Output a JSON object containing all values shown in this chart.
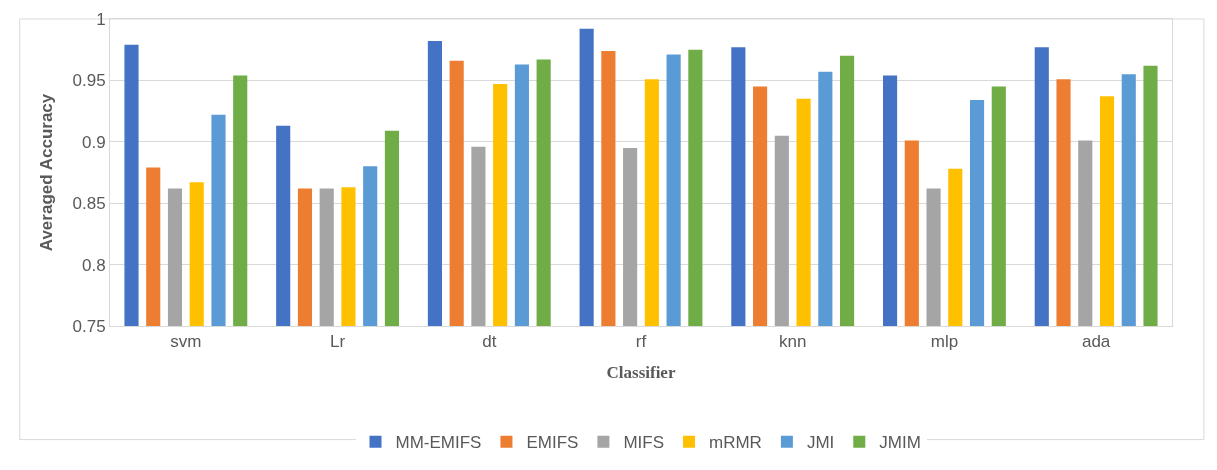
{
  "chart_data": {
    "type": "bar",
    "xlabel": "Classifier",
    "ylabel": "Averaged Accuracy",
    "categories": [
      "svm",
      "Lr",
      "dt",
      "rf",
      "knn",
      "mlp",
      "ada"
    ],
    "series": [
      {
        "name": "MM-EMIFS",
        "color": "#4472c4",
        "values": [
          0.979,
          0.913,
          0.982,
          0.992,
          0.977,
          0.954,
          0.977
        ]
      },
      {
        "name": "EMIFS",
        "color": "#ed7d31",
        "values": [
          0.879,
          0.862,
          0.966,
          0.974,
          0.945,
          0.901,
          0.951
        ]
      },
      {
        "name": "MIFS",
        "color": "#a5a5a5",
        "values": [
          0.862,
          0.862,
          0.896,
          0.895,
          0.905,
          0.862,
          0.901
        ]
      },
      {
        "name": "mRMR",
        "color": "#ffc000",
        "values": [
          0.867,
          0.863,
          0.947,
          0.951,
          0.935,
          0.878,
          0.937
        ]
      },
      {
        "name": "JMI",
        "color": "#5b9bd5",
        "values": [
          0.922,
          0.88,
          0.963,
          0.971,
          0.957,
          0.934,
          0.955
        ]
      },
      {
        "name": "JMIM",
        "color": "#70ad47",
        "values": [
          0.954,
          0.909,
          0.967,
          0.975,
          0.97,
          0.945,
          0.962
        ]
      }
    ],
    "ylim": [
      0.75,
      1
    ],
    "yticks": [
      0.75,
      0.8,
      0.85,
      0.9,
      0.95,
      {
        "value": 1,
        "label": "1"
      }
    ],
    "grid": "y",
    "legend": "bottom"
  }
}
